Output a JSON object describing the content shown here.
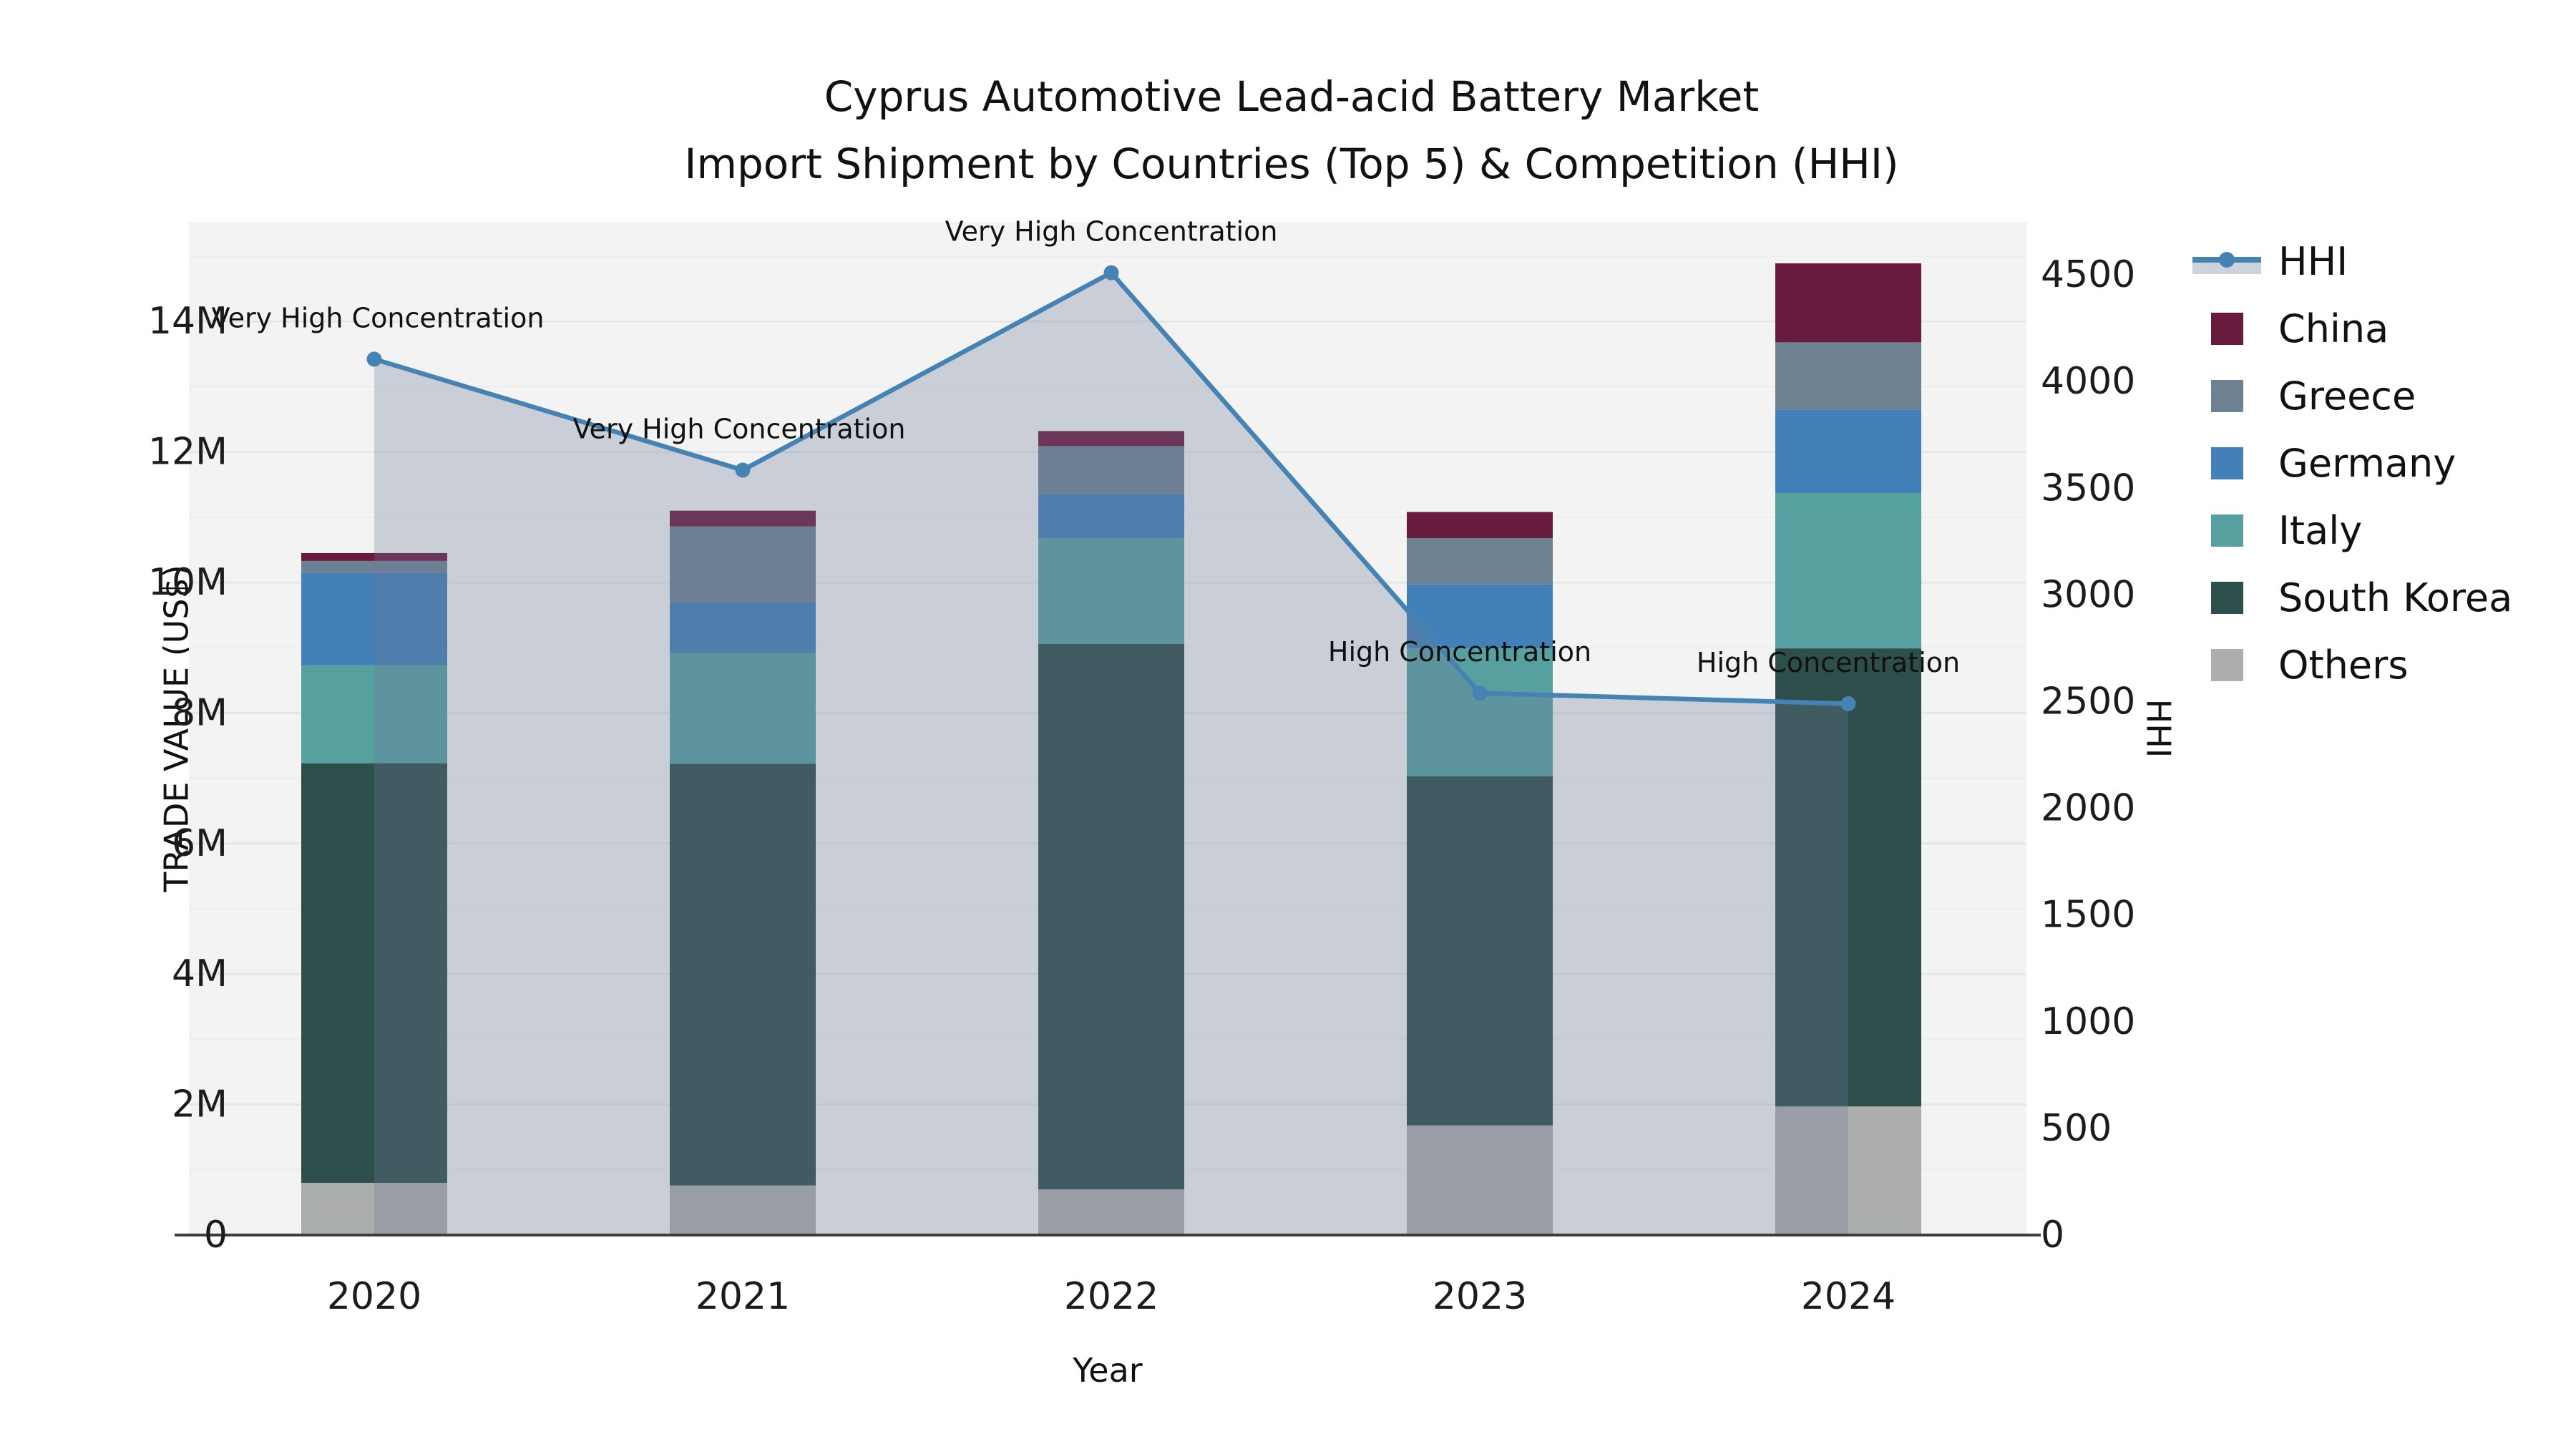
{
  "title": {
    "line1": "Cyprus Automotive Lead-acid Battery Market",
    "line2": "Import Shipment by Countries (Top 5) & Competition (HHI)"
  },
  "axes": {
    "x_label": "Year",
    "y_left_label": "TRADE VALUE (US$)",
    "y_right_label": "HHI",
    "y_left_ticks": [
      "0",
      "2M",
      "4M",
      "6M",
      "8M",
      "10M",
      "12M",
      "14M"
    ],
    "y_right_ticks": [
      "0",
      "500",
      "1000",
      "1500",
      "2000",
      "2500",
      "3000",
      "3500",
      "4000",
      "4500"
    ],
    "x_ticks": [
      "2020",
      "2021",
      "2022",
      "2023",
      "2024"
    ]
  },
  "legend": {
    "items": [
      {
        "label": "HHI",
        "type": "line",
        "color": "#4583B5"
      },
      {
        "label": "China",
        "type": "swatch",
        "color": "#691B3E"
      },
      {
        "label": "Greece",
        "type": "swatch",
        "color": "#6E8192"
      },
      {
        "label": "Germany",
        "type": "swatch",
        "color": "#4380B7"
      },
      {
        "label": "Italy",
        "type": "swatch",
        "color": "#57A0A0"
      },
      {
        "label": "South Korea",
        "type": "swatch",
        "color": "#2E4E4C"
      },
      {
        "label": "Others",
        "type": "swatch",
        "color": "#ACAEAD"
      }
    ]
  },
  "colors": {
    "hhi_line": "#4583B5",
    "hhi_area_fill": "rgba(110,124,152,0.30)",
    "legend_hhi_band": "#CDD3DC",
    "plot_background": "#F2F3F2",
    "grid_major": "#E5E6E6",
    "grid_minor": "#ECEDED",
    "axis_line": "#3D3D3D",
    "tick_text": "#1C1C1C",
    "annotation_text": "#111111"
  },
  "chart_data": {
    "type": "bar",
    "subtype": "stacked bars (left axis, trade value US$) + HHI line with shaded area (right axis)",
    "categories": [
      2020,
      2021,
      2022,
      2023,
      2024
    ],
    "value_unit": "million US$",
    "stack_order_bottom_to_top": [
      "Others",
      "South Korea",
      "Italy",
      "Germany",
      "Greece",
      "China"
    ],
    "series": [
      {
        "name": "Others",
        "color": "#ACAEAD",
        "values": [
          0.8,
          0.76,
          0.7,
          1.68,
          1.97
        ]
      },
      {
        "name": "South Korea",
        "color": "#2E4E4C",
        "values": [
          6.43,
          6.46,
          8.36,
          5.35,
          7.02
        ]
      },
      {
        "name": "Italy",
        "color": "#57A0A0",
        "values": [
          1.5,
          1.7,
          1.62,
          1.96,
          2.38
        ]
      },
      {
        "name": "Germany",
        "color": "#4380B7",
        "values": [
          1.42,
          0.78,
          0.67,
          0.98,
          1.28
        ]
      },
      {
        "name": "Greece",
        "color": "#6E8192",
        "values": [
          0.18,
          1.16,
          0.74,
          0.71,
          1.03
        ]
      },
      {
        "name": "China",
        "color": "#691B3E",
        "values": [
          0.12,
          0.24,
          0.23,
          0.4,
          1.21
        ]
      }
    ],
    "bar_totals_musd": [
      10.45,
      11.1,
      12.32,
      11.08,
      14.89
    ],
    "line_series": {
      "name": "HHI",
      "axis": "right",
      "color": "#4583B5",
      "area_fill": true,
      "values": [
        4105,
        3585,
        4510,
        2540,
        2490
      ]
    },
    "annotations": [
      {
        "x": 2020,
        "text": "Very High Concentration"
      },
      {
        "x": 2021,
        "text": "Very High Concentration"
      },
      {
        "x": 2022,
        "text": "Very High Concentration"
      },
      {
        "x": 2023,
        "text": "High Concentration"
      },
      {
        "x": 2024,
        "text": "High Concentration"
      }
    ],
    "title": "Cyprus Automotive Lead-acid Battery Market Import Shipment by Countries (Top 5) & Competition (HHI)",
    "xlabel": "Year",
    "ylabel_left": "TRADE VALUE (US$)",
    "ylabel_right": "HHI",
    "ylim_left": [
      0,
      15500000
    ],
    "ylim_right": [
      0,
      4750
    ],
    "grid": true,
    "legend_position": "right"
  }
}
